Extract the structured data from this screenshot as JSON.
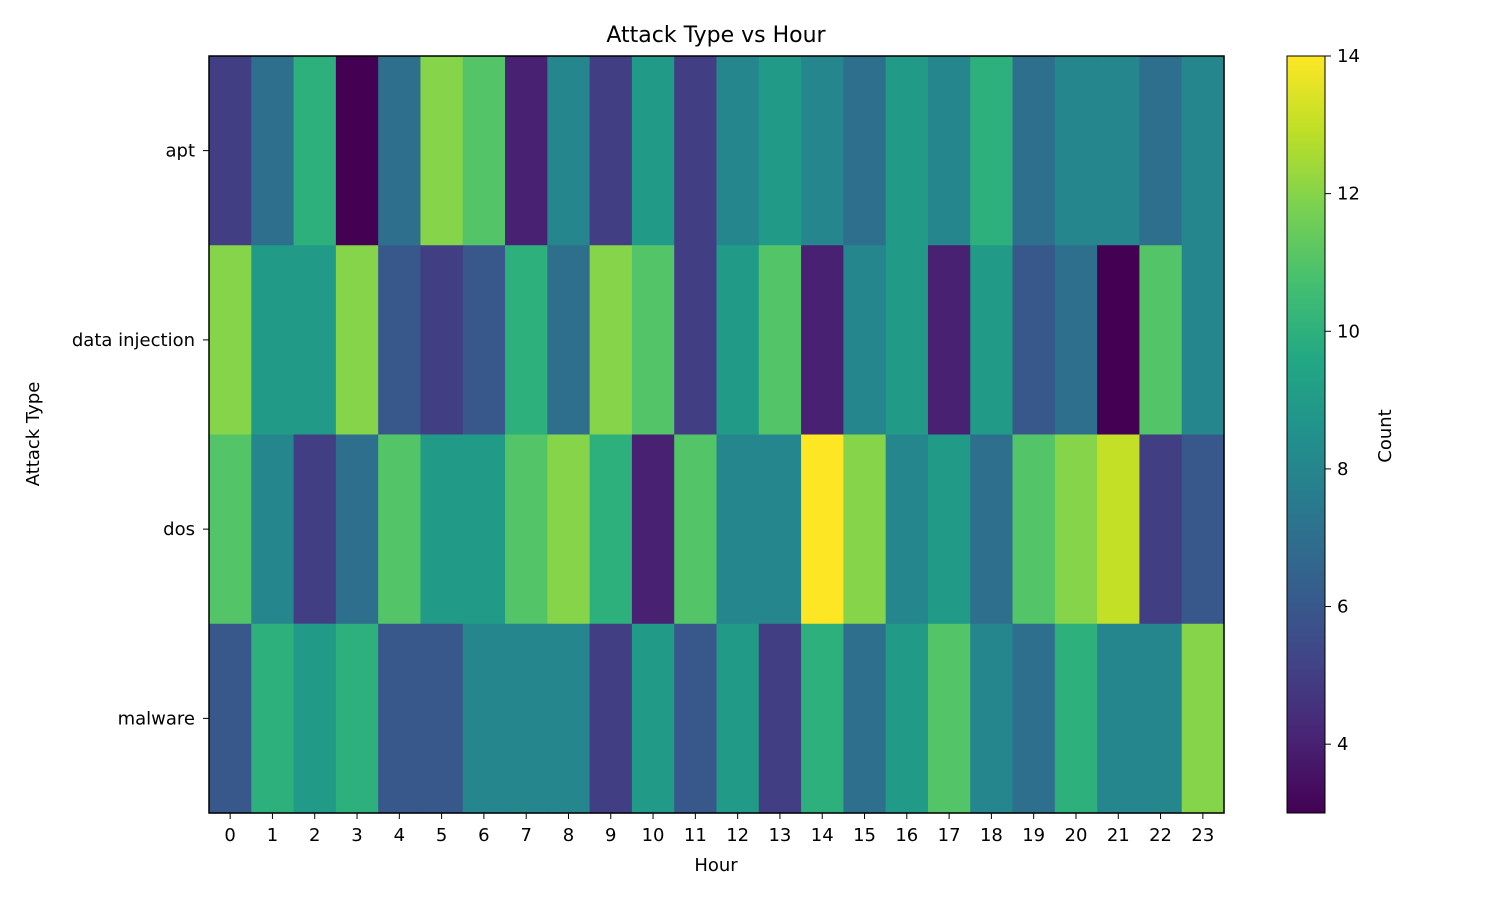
{
  "chart_data": {
    "type": "heatmap",
    "title": "Attack Type vs Hour",
    "xlabel": "Hour",
    "ylabel": "Attack Type",
    "x": [
      "0",
      "1",
      "2",
      "3",
      "4",
      "5",
      "6",
      "7",
      "8",
      "9",
      "10",
      "11",
      "12",
      "13",
      "14",
      "15",
      "16",
      "17",
      "18",
      "19",
      "20",
      "21",
      "22",
      "23"
    ],
    "y": [
      "apt",
      "data injection",
      "dos",
      "malware"
    ],
    "values": [
      [
        5,
        7,
        10,
        3,
        7,
        12,
        11,
        4,
        8,
        5,
        9,
        5,
        8,
        9,
        8,
        7,
        9,
        8,
        10,
        7,
        8,
        8,
        7,
        8
      ],
      [
        12,
        9,
        9,
        12,
        6,
        5,
        6,
        10,
        7,
        12,
        11,
        5,
        9,
        11,
        4,
        8,
        9,
        4,
        9,
        6,
        7,
        3,
        11,
        8
      ],
      [
        11,
        8,
        5,
        7,
        11,
        9,
        9,
        11,
        12,
        10,
        4,
        11,
        8,
        8,
        14,
        12,
        8,
        9,
        7,
        11,
        12,
        13,
        5,
        6
      ],
      [
        6,
        10,
        9,
        10,
        6,
        6,
        8,
        8,
        8,
        5,
        9,
        6,
        9,
        5,
        10,
        7,
        9,
        11,
        8,
        7,
        10,
        8,
        8,
        12
      ]
    ],
    "colormap": "viridis",
    "colorbar": {
      "label": "Count",
      "min": 3,
      "max": 14,
      "ticks": [
        "4",
        "6",
        "8",
        "10",
        "12",
        "14"
      ]
    }
  }
}
